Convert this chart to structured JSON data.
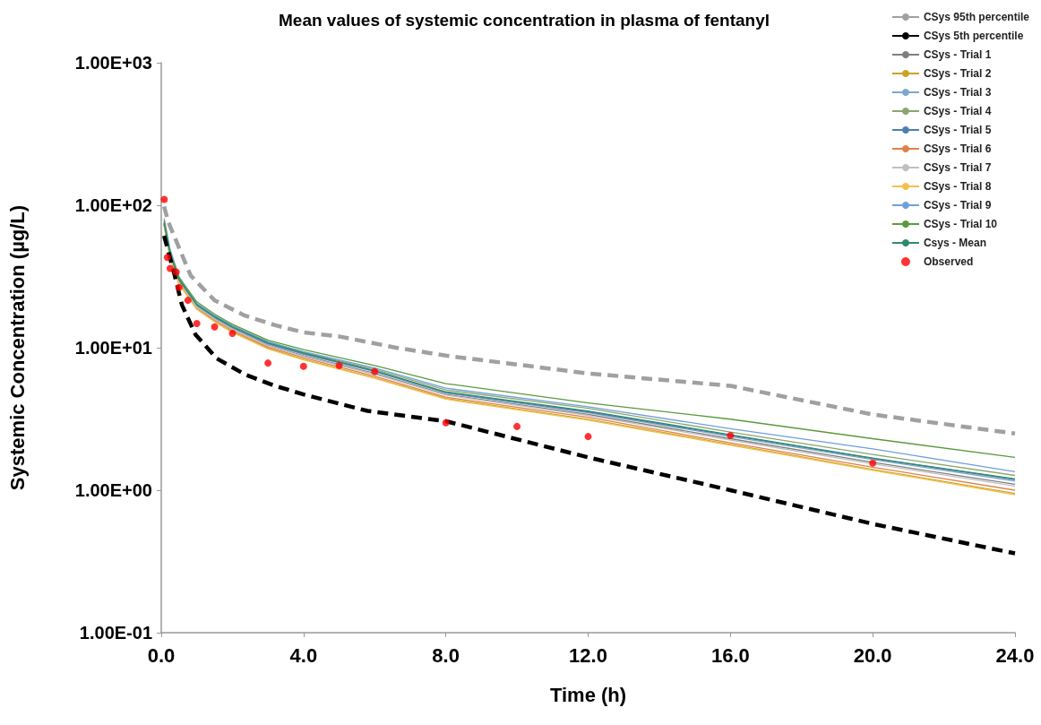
{
  "chart_data": {
    "type": "line",
    "title": "Mean values of systemic concentration in plasma of fentanyl",
    "xlabel": "Time (h)",
    "ylabel": "Systemic Concentration (µg/L)",
    "log": "y",
    "grid": false,
    "legend": "top right",
    "marker": "none",
    "line_style": "solid",
    "xlim": [
      0,
      24
    ],
    "xticks": [
      {
        "value": 0,
        "label": "0.0"
      },
      {
        "value": 4,
        "label": "4.0"
      },
      {
        "value": 8,
        "label": "8.0"
      },
      {
        "value": 12,
        "label": "12.0"
      },
      {
        "value": 16,
        "label": "16.0"
      },
      {
        "value": 20,
        "label": "20.0"
      },
      {
        "value": 24,
        "label": "24.0"
      }
    ],
    "ylim": [
      0.1,
      1000
    ],
    "yticks": [
      {
        "value": 0.1,
        "label": "1.00E-01"
      },
      {
        "value": 1,
        "label": "1.00E+00"
      },
      {
        "value": 10,
        "label": "1.00E+01"
      },
      {
        "value": 100,
        "label": "1.00E+02"
      },
      {
        "value": 1000,
        "label": "1.00E+03"
      }
    ],
    "x": [
      0.08,
      0.25,
      0.5,
      1,
      1.5,
      2,
      3,
      4,
      6,
      8,
      12,
      16,
      20,
      24
    ],
    "series": [
      {
        "name": "CSys 95th percentile",
        "color": "#a0a0a0",
        "line_style": "dashed",
        "x": [
          0.08,
          0.2,
          0.83,
          1.5,
          2.35,
          3.2,
          4,
          5,
          6.6,
          8,
          12,
          16,
          20,
          24
        ],
        "values": [
          98,
          76,
          32,
          21.5,
          16.8,
          14.4,
          12.8,
          12,
          10,
          8.8,
          6.6,
          5.4,
          3.4,
          2.5
        ]
      },
      {
        "name": "CSys 5th percentile",
        "color": "#000000",
        "line_style": "dashed",
        "x": [
          0.08,
          0.38,
          0.58,
          0.96,
          1.56,
          2.35,
          3.2,
          4,
          5.8,
          8,
          12,
          16,
          20,
          24
        ],
        "values": [
          61,
          32,
          20,
          12.4,
          8.4,
          6.5,
          5.4,
          4.7,
          3.6,
          3.05,
          1.7,
          1.0,
          0.58,
          0.36
        ]
      },
      {
        "name": "CSys - Trial 1",
        "color": "#7f7f7f",
        "values": [
          74,
          44,
          29,
          19.4,
          16,
          13.6,
          10.4,
          8.8,
          6.6,
          4.7,
          3.4,
          2.3,
          1.57,
          1.1
        ]
      },
      {
        "name": "CSys - Trial 2",
        "color": "#c9a227",
        "values": [
          72,
          43,
          28,
          18.7,
          15.3,
          12.9,
          9.9,
          8.3,
          6.15,
          4.4,
          3.15,
          2.1,
          1.4,
          0.95
        ]
      },
      {
        "name": "CSys - Trial 3",
        "color": "#7fa7c9",
        "values": [
          74,
          44.5,
          29.5,
          19.7,
          16.2,
          13.8,
          10.6,
          9.0,
          6.8,
          4.8,
          3.5,
          2.38,
          1.64,
          1.16
        ]
      },
      {
        "name": "CSys - Trial 4",
        "color": "#8aa66d",
        "values": [
          76,
          45.5,
          30.3,
          20.2,
          16.7,
          14.2,
          11.0,
          9.3,
          7.05,
          5.05,
          3.75,
          2.56,
          1.78,
          1.27
        ]
      },
      {
        "name": "CSys - Trial 5",
        "color": "#4f7fb0",
        "values": [
          75,
          45,
          30,
          20,
          16.4,
          13.9,
          10.7,
          9.1,
          6.85,
          4.85,
          3.55,
          2.42,
          1.67,
          1.19
        ]
      },
      {
        "name": "CSys - Trial 6",
        "color": "#e0804a",
        "values": [
          73,
          43.5,
          28.5,
          19,
          15.6,
          13.2,
          10.1,
          8.5,
          6.3,
          4.5,
          3.25,
          2.15,
          1.45,
          1.0
        ]
      },
      {
        "name": "CSys - Trial 7",
        "color": "#bfbfbf",
        "values": [
          73,
          44,
          29,
          19.3,
          15.9,
          13.5,
          10.3,
          8.7,
          6.5,
          4.65,
          3.35,
          2.25,
          1.53,
          1.07
        ]
      },
      {
        "name": "CSys - Trial 8",
        "color": "#f2c04a",
        "values": [
          72,
          43,
          28,
          18.6,
          15.2,
          12.8,
          9.8,
          8.2,
          6.1,
          4.35,
          3.1,
          2.07,
          1.38,
          0.93
        ]
      },
      {
        "name": "CSys - Trial 9",
        "color": "#6f9fdc",
        "values": [
          81,
          49,
          31.5,
          20.5,
          16.8,
          14.3,
          11.0,
          9.4,
          7.2,
          5.2,
          3.85,
          2.7,
          1.95,
          1.35
        ]
      },
      {
        "name": "CSys - Trial 10",
        "color": "#5a9a3c",
        "values": [
          78,
          47,
          31,
          21,
          17.2,
          14.6,
          11.3,
          9.7,
          7.5,
          5.6,
          4.1,
          3.15,
          2.3,
          1.7
        ]
      },
      {
        "name": "Csys - Mean",
        "color": "#2e8b6a",
        "values": [
          75,
          45,
          30,
          20,
          16.5,
          14,
          10.8,
          9.2,
          6.9,
          4.9,
          3.6,
          2.45,
          1.68,
          1.2
        ]
      },
      {
        "name": "Observed",
        "type": "scatter",
        "marker": "circle",
        "color": "#ff0000",
        "x": [
          0.083,
          0.17,
          0.25,
          0.42,
          0.5,
          0.75,
          1,
          1.5,
          2,
          3,
          4,
          5,
          6,
          8,
          10,
          12,
          16,
          20
        ],
        "values": [
          110,
          43,
          36,
          34,
          26.5,
          21.5,
          14.8,
          14,
          12.6,
          7.8,
          7.4,
          7.5,
          6.8,
          2.97,
          2.8,
          2.38,
          2.42,
          1.55
        ]
      }
    ]
  }
}
